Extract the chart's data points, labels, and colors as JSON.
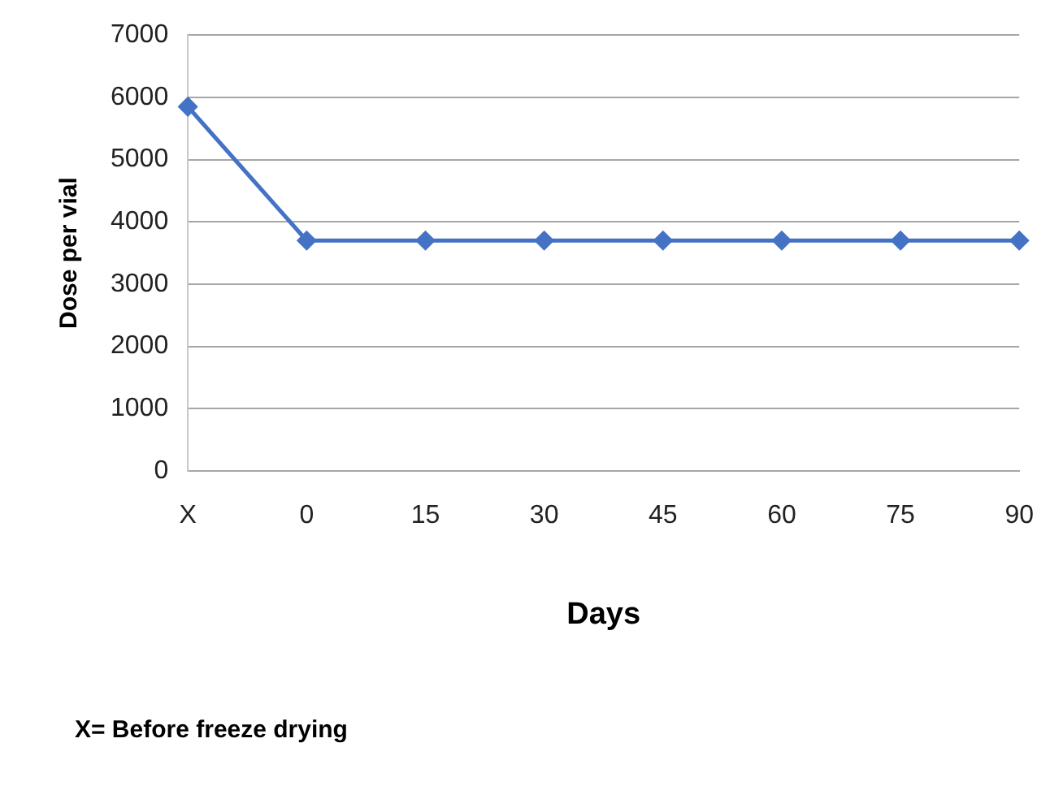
{
  "chart_data": {
    "type": "line",
    "xlabel": "Days",
    "ylabel": "Dose per vial",
    "categories": [
      "X",
      "0",
      "15",
      "30",
      "45",
      "60",
      "75",
      "90"
    ],
    "series": [
      {
        "color": "#4472c4",
        "values": [
          5850,
          3700,
          3700,
          3700,
          3700,
          3700,
          3700,
          3700
        ]
      }
    ],
    "ylim": [
      0,
      7000
    ],
    "yticks": [
      0,
      1000,
      2000,
      3000,
      4000,
      5000,
      6000,
      7000
    ],
    "grid": "y",
    "legend": false,
    "marker": "diamond",
    "line_style": "solid",
    "annotations": [
      "X= Before freeze drying"
    ]
  }
}
